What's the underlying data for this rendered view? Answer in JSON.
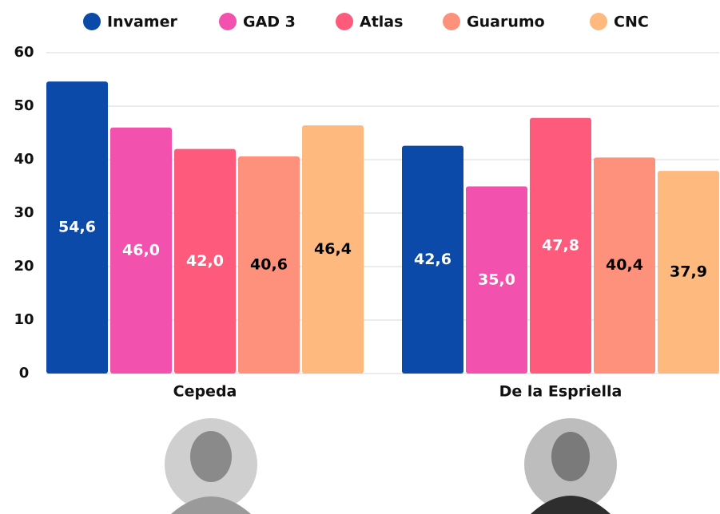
{
  "chart_data": {
    "type": "bar",
    "categories": [
      "Cepeda",
      "De la Espriella"
    ],
    "series": [
      {
        "name": "Invamer",
        "color": "#0b4aa8",
        "label_color": "#ffffff",
        "values": [
          54.6,
          42.6
        ],
        "value_labels": [
          "54,6",
          "42,6"
        ]
      },
      {
        "name": "GAD 3",
        "color": "#f252ae",
        "label_color": "#ffffff",
        "values": [
          46.0,
          35.0
        ],
        "value_labels": [
          "46,0",
          "35,0"
        ]
      },
      {
        "name": "Atlas",
        "color": "#fd5a7c",
        "label_color": "#ffffff",
        "values": [
          42.0,
          47.8
        ],
        "value_labels": [
          "42,0",
          "47,8"
        ]
      },
      {
        "name": "Guarumo",
        "color": "#fd917b",
        "label_color": "#000000",
        "values": [
          40.6,
          40.4
        ],
        "value_labels": [
          "40,6",
          "40,4"
        ]
      },
      {
        "name": "CNC",
        "color": "#fdb97e",
        "label_color": "#000000",
        "values": [
          46.4,
          37.9
        ],
        "value_labels": [
          "46,4",
          "37,9"
        ]
      }
    ],
    "ylim": [
      0,
      60
    ],
    "yticks": [
      0,
      10,
      20,
      30,
      40,
      50,
      60
    ],
    "grid": true
  }
}
